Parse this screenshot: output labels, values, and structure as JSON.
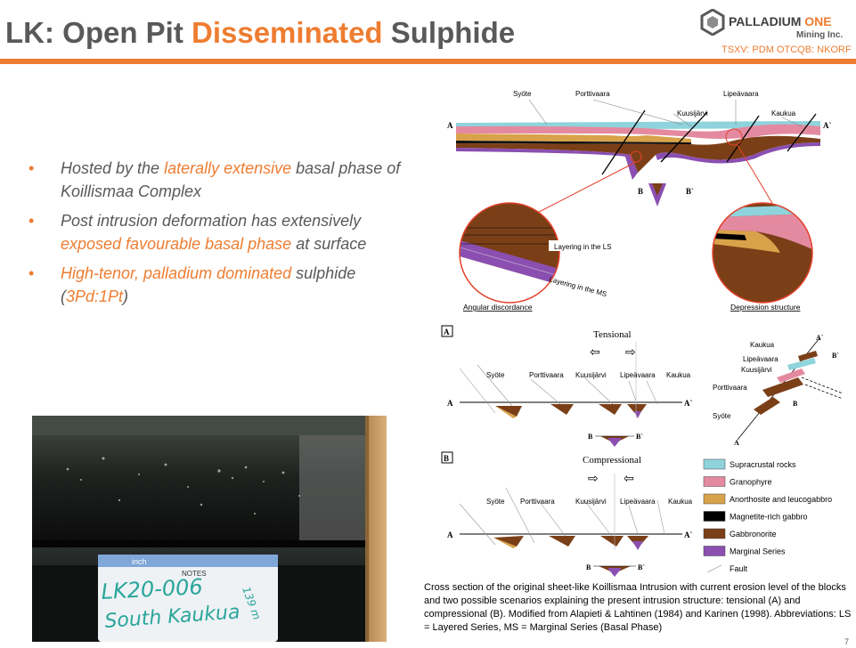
{
  "header": {
    "title_prefix": "LK:  Open Pit ",
    "title_accent": "Disseminated",
    "title_suffix": " Sulphide"
  },
  "logo": {
    "name_main": "PALLADIUM ",
    "name_accent": "ONE",
    "subtitle": "Mining Inc.",
    "ticker": "TSXV: PDM  OTCQB: NKORF"
  },
  "bullets": [
    {
      "parts": [
        {
          "t": "Hosted by the ",
          "hl": false
        },
        {
          "t": "laterally extensive",
          "hl": true
        },
        {
          "t": " basal phase of Koillismaa Complex",
          "hl": false
        }
      ]
    },
    {
      "parts": [
        {
          "t": "Post intrusion deformation has extensively ",
          "hl": false
        },
        {
          "t": "exposed favourable basal phase",
          "hl": true
        },
        {
          "t": " at surface",
          "hl": false
        }
      ]
    },
    {
      "parts": [
        {
          "t": "High-tenor, palladium dominated",
          "hl": true
        },
        {
          "t": " sulphide (",
          "hl": false
        },
        {
          "t": "3Pd:1Pt",
          "hl": true
        },
        {
          "t": ")",
          "hl": false
        }
      ]
    }
  ],
  "core_photo": {
    "ruler_label": "inch",
    "notes_label": "NOTES",
    "handwriting_line1": "LK20-006",
    "handwriting_line2": "South Kaukua",
    "handwriting_depth": "139 m"
  },
  "figure": {
    "section_labels": {
      "a": "A",
      "a_prime": "A`",
      "b": "B",
      "b_prime": "B`"
    },
    "top_places": [
      "Syöte",
      "Porttivaara",
      "Lipeävaara",
      "Kuusijärvi",
      "Kaukua"
    ],
    "inset_left_label_ls": "Layering in the LS",
    "inset_left_label_ms": "Layering in the MS",
    "inset_left_caption": "Angular discordance",
    "inset_right_caption": "Depression structure",
    "panel_a_letter": "A",
    "panel_a_title": "Tensional",
    "panel_b_letter": "B",
    "panel_b_title": "Compressional",
    "panel_places": [
      "Syöte",
      "Porttivaara",
      "Kuusijärvi",
      "Lipeävaara",
      "Kaukua"
    ],
    "block_labels": [
      "Kaukua",
      "Lipeävaara",
      "Kuusijärvi",
      "Porttivaara",
      "Syöte"
    ],
    "legend": [
      {
        "label": "Supracrustal rocks",
        "color": "#8fd3dc"
      },
      {
        "label": "Granophyre",
        "color": "#e48aa0"
      },
      {
        "label": "Anorthosite and leucogabbro",
        "color": "#d8a24a"
      },
      {
        "label": "Magnetite-rich gabbro",
        "color": "#000000"
      },
      {
        "label": "Gabbronorite",
        "color": "#7b3f17"
      },
      {
        "label": "Marginal Series",
        "color": "#8a4fb0"
      },
      {
        "label": "Fault",
        "color": "#bbbbbb"
      }
    ]
  },
  "caption": "Cross section of the original sheet-like Koillismaa Intrusion with current erosion level of the blocks and two possible scenarios explaining the present intrusion structure: tensional (A) and compressional (B). Modified  from Alapieti & Lahtinen (1984) and Karinen (1998). Abbreviations: LS = Layered Series, MS = Marginal Series (Basal Phase)",
  "page_number": "7",
  "colors": {
    "accent": "#ee7d31",
    "title_gray": "#595959"
  }
}
